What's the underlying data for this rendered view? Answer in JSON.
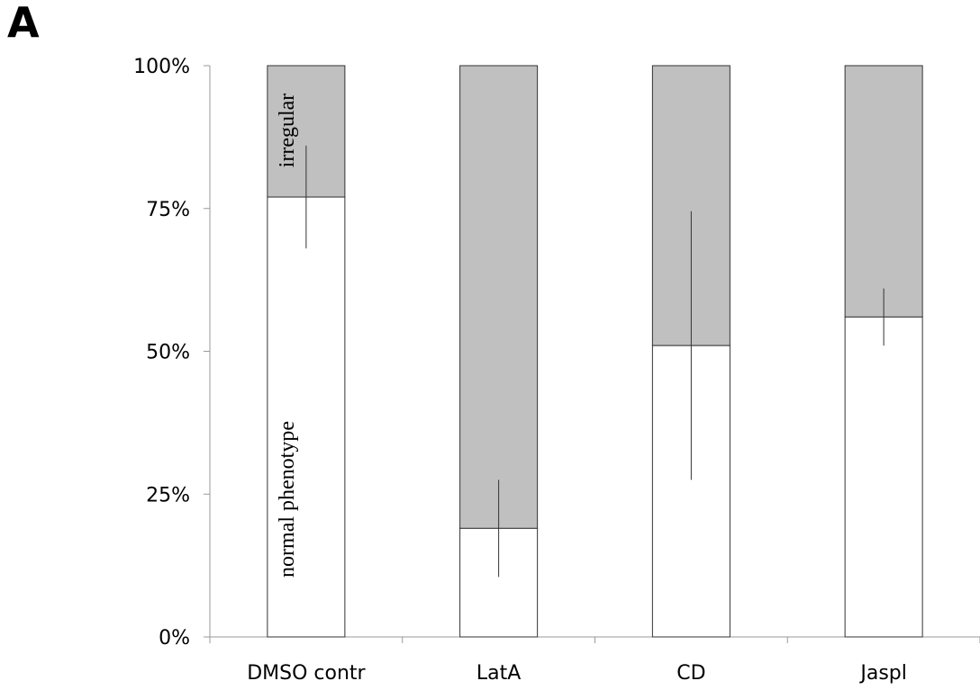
{
  "panel_label": "A",
  "chart_data": {
    "type": "bar",
    "stacked": true,
    "percent": true,
    "categories": [
      "DMSO contr",
      "LatA",
      "CD",
      "Jaspl"
    ],
    "series": [
      {
        "name": "normal phenotype",
        "values": [
          77,
          19,
          51,
          56
        ],
        "color": "#ffffff",
        "error": [
          9,
          8.5,
          23.5,
          5
        ]
      },
      {
        "name": "irregular",
        "values": [
          23,
          81,
          49,
          44
        ],
        "color": "#c0c0c0"
      }
    ],
    "y_ticks": [
      "0%",
      "25%",
      "50%",
      "75%",
      "100%"
    ],
    "ylim": [
      0,
      100
    ],
    "annotations": [
      "normal phenotype",
      "irregular"
    ],
    "legend": "none",
    "grid": false
  }
}
